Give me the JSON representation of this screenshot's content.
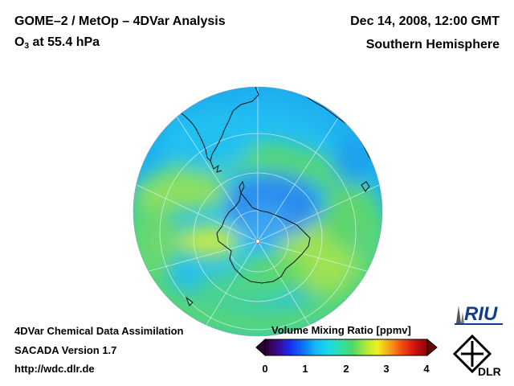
{
  "header": {
    "instrument": "GOME–2 / MetOp – 4DVar Analysis",
    "species_prefix": "O",
    "species_sub": "3",
    "species_suffix": " at 55.4 hPa",
    "datetime": "Dec 14, 2008, 12:00 GMT",
    "region": "Southern Hemisphere"
  },
  "footer": {
    "line1": "4DVar Chemical Data Assimilation",
    "line2": "SACADA Version 1.7",
    "line3": "http://wdc.dlr.de"
  },
  "colorbar": {
    "title": "Volume Mixing Ratio [ppmv]",
    "ticks": [
      "0",
      "1",
      "2",
      "3",
      "4"
    ],
    "range": [
      0,
      4
    ],
    "colors": [
      "#2a0030",
      "#3b0a8c",
      "#1a2cf0",
      "#0e6ff5",
      "#14b4f5",
      "#1ad8e8",
      "#2ee0a8",
      "#4ed66a",
      "#a6e63c",
      "#f0f020",
      "#f5a018",
      "#f04a14",
      "#d01010",
      "#8c0606"
    ]
  },
  "logos": {
    "riu": "RIU",
    "dlr": "DLR"
  },
  "map_colors": {
    "ocean_base": "#27c3f0",
    "ring_green": "#58d86e",
    "ring_yellow": "#b6e646",
    "core_blue": "#2b88f0",
    "coast": "#111111",
    "grid": "#e8f4ff"
  }
}
